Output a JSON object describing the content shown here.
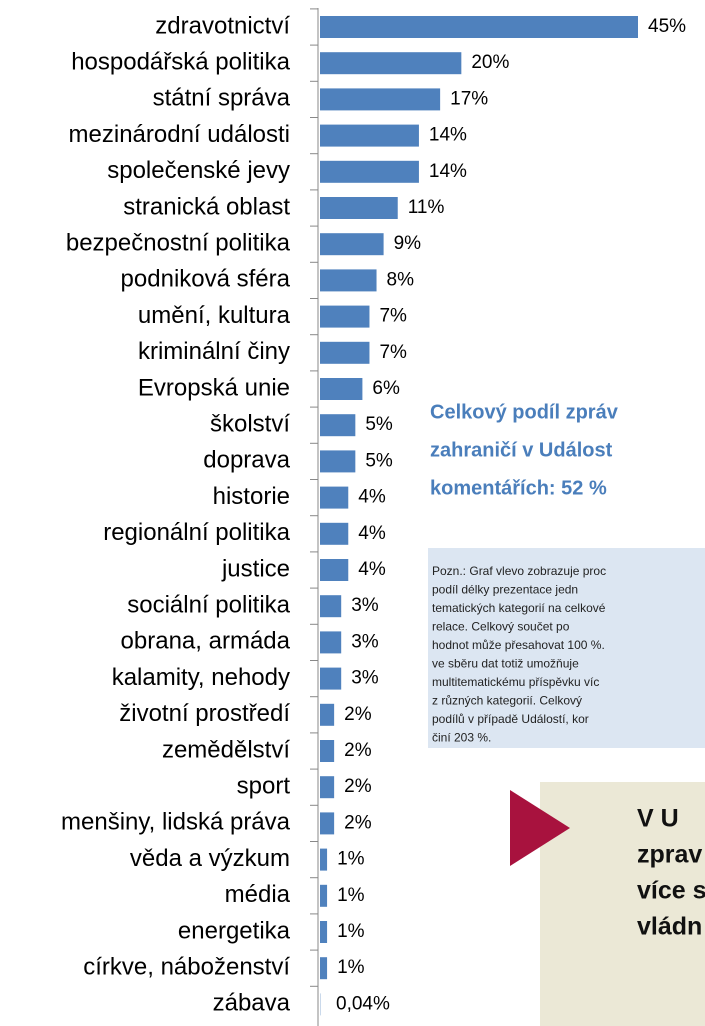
{
  "chart_data": {
    "type": "bar",
    "orientation": "horizontal",
    "categories": [
      "zdravotnictví",
      "hospodářská politika",
      "státní správa",
      "mezinárodní události",
      "společenské jevy",
      "stranická oblast",
      "bezpečnostní politika",
      "podniková sféra",
      "umění, kultura",
      "kriminální činy",
      "Evropská unie",
      "školství",
      "doprava",
      "historie",
      "regionální politika",
      "justice",
      "sociální politika",
      "obrana, armáda",
      "kalamity, nehody",
      "životní prostředí",
      "zemědělství",
      "sport",
      "menšiny, lidská práva",
      "věda a výzkum",
      "média",
      "energetika",
      "církve, náboženství",
      "zábava"
    ],
    "values": [
      45,
      20,
      17,
      14,
      14,
      11,
      9,
      8,
      7,
      7,
      6,
      5,
      5,
      4,
      4,
      4,
      3,
      3,
      3,
      2,
      2,
      2,
      2,
      1,
      1,
      1,
      1,
      0.04
    ],
    "value_labels": [
      "45%",
      "20%",
      "17%",
      "14%",
      "14%",
      "11%",
      "9%",
      "8%",
      "7%",
      "7%",
      "6%",
      "5%",
      "5%",
      "4%",
      "4%",
      "4%",
      "3%",
      "3%",
      "3%",
      "2%",
      "2%",
      "2%",
      "2%",
      "1%",
      "1%",
      "1%",
      "1%",
      "0,04%"
    ],
    "color": "#4f81bd"
  },
  "summary_box": {
    "lines": [
      "Celkový podíl zpráv",
      "zahraničí v Událost",
      "komentářích: 52 %"
    ]
  },
  "note_box": {
    "lines": [
      "Pozn.: Graf vlevo zobrazuje proc",
      "podíl délky prezentace jedn",
      "tematických kategorií na celkové",
      "relace. Celkový součet po",
      "hodnot může přesahovat 100 %.",
      "ve sběru dat totiž umožňuje",
      "multitematickému příspěvku víc",
      "z různých kategorií. Celkový",
      "podílů v případě Událostí, kor",
      "činí 203 %."
    ]
  },
  "callout_box": {
    "lines": [
      "V U",
      "zprav",
      "více s",
      "vládn"
    ]
  }
}
